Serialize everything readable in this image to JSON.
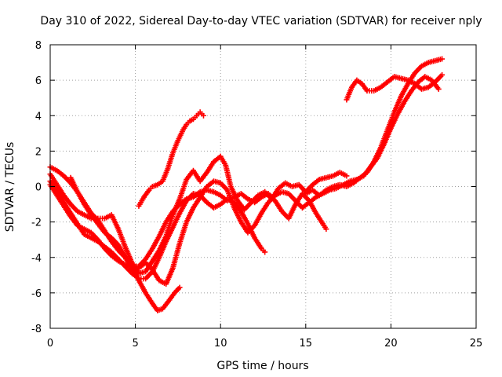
{
  "chart_data": {
    "type": "scatter",
    "title": "Day 310 of 2022, Sidereal Day-to-day VTEC variation (SDTVAR) for receiver nply",
    "xlabel": "GPS time / hours",
    "ylabel": "SDTVAR / TECUs",
    "xlim": [
      0,
      25
    ],
    "ylim": [
      -8,
      8
    ],
    "xticks": [
      0,
      5,
      10,
      15,
      20,
      25
    ],
    "yticks": [
      -8,
      -6,
      -4,
      -2,
      0,
      2,
      4,
      6,
      8
    ],
    "grid": true,
    "marker": "+",
    "color": "#ff0000",
    "series": [
      {
        "points": [
          [
            0.0,
            1.1
          ],
          [
            0.4,
            0.9
          ],
          [
            0.8,
            0.6
          ],
          [
            1.2,
            0.2
          ],
          [
            1.6,
            -0.3
          ],
          [
            2.0,
            -0.9
          ],
          [
            2.4,
            -1.5
          ],
          [
            2.8,
            -1.9
          ],
          [
            3.2,
            -2.5
          ],
          [
            3.6,
            -3.1
          ],
          [
            4.0,
            -3.6
          ],
          [
            4.4,
            -4.0
          ],
          [
            4.8,
            -4.6
          ],
          [
            5.2,
            -5.3
          ],
          [
            5.6,
            -6.0
          ],
          [
            6.0,
            -6.6
          ],
          [
            6.3,
            -7.0
          ],
          [
            6.6,
            -6.9
          ],
          [
            7.0,
            -6.4
          ],
          [
            7.3,
            -6.0
          ],
          [
            7.6,
            -5.7
          ]
        ]
      },
      {
        "points": [
          [
            0.0,
            0.7
          ],
          [
            0.4,
            0.1
          ],
          [
            0.8,
            -0.5
          ],
          [
            1.2,
            -1.0
          ],
          [
            1.6,
            -1.4
          ],
          [
            2.0,
            -1.6
          ],
          [
            2.4,
            -1.8
          ],
          [
            2.8,
            -1.8
          ],
          [
            3.2,
            -1.8
          ],
          [
            3.6,
            -1.6
          ],
          [
            4.0,
            -2.4
          ],
          [
            4.4,
            -3.4
          ],
          [
            4.8,
            -4.3
          ],
          [
            5.2,
            -4.9
          ],
          [
            5.6,
            -4.8
          ],
          [
            6.0,
            -4.2
          ],
          [
            6.4,
            -3.6
          ],
          [
            6.8,
            -2.8
          ],
          [
            7.2,
            -1.6
          ],
          [
            7.6,
            -0.7
          ],
          [
            8.0,
            0.4
          ],
          [
            8.4,
            0.9
          ],
          [
            8.8,
            0.3
          ],
          [
            9.2,
            0.8
          ],
          [
            9.6,
            1.4
          ],
          [
            10.0,
            1.7
          ],
          [
            10.3,
            1.2
          ],
          [
            10.6,
            0.0
          ],
          [
            11.0,
            -0.8
          ],
          [
            11.4,
            -1.3
          ],
          [
            11.8,
            -0.9
          ],
          [
            12.2,
            -0.5
          ],
          [
            12.6,
            -0.3
          ],
          [
            13.0,
            -0.7
          ],
          [
            13.4,
            -0.1
          ],
          [
            13.8,
            0.2
          ],
          [
            14.2,
            0.0
          ],
          [
            14.6,
            0.1
          ],
          [
            15.0,
            -0.3
          ],
          [
            15.4,
            0.1
          ],
          [
            15.8,
            0.4
          ],
          [
            16.2,
            0.5
          ],
          [
            16.6,
            0.6
          ],
          [
            17.0,
            0.8
          ],
          [
            17.4,
            0.6
          ]
        ]
      },
      {
        "points": [
          [
            0.0,
            0.3
          ],
          [
            0.4,
            -0.3
          ],
          [
            0.8,
            -0.9
          ],
          [
            1.2,
            -1.5
          ],
          [
            1.6,
            -2.1
          ],
          [
            2.0,
            -2.7
          ],
          [
            2.4,
            -2.9
          ],
          [
            2.8,
            -3.1
          ],
          [
            3.2,
            -3.4
          ],
          [
            3.6,
            -3.7
          ],
          [
            4.0,
            -4.1
          ],
          [
            4.4,
            -4.5
          ],
          [
            4.8,
            -4.9
          ],
          [
            5.2,
            -5.2
          ],
          [
            5.6,
            -5.2
          ],
          [
            6.0,
            -4.8
          ],
          [
            6.4,
            -4.0
          ],
          [
            6.8,
            -3.1
          ],
          [
            7.2,
            -2.3
          ],
          [
            7.6,
            -1.5
          ],
          [
            8.0,
            -0.8
          ],
          [
            8.4,
            -0.4
          ],
          [
            8.8,
            -0.5
          ],
          [
            9.2,
            -0.9
          ],
          [
            9.6,
            -1.2
          ],
          [
            10.0,
            -1.0
          ],
          [
            10.4,
            -0.7
          ],
          [
            10.8,
            -0.9
          ],
          [
            11.2,
            -1.4
          ],
          [
            11.6,
            -2.1
          ],
          [
            12.0,
            -2.9
          ],
          [
            12.4,
            -3.5
          ],
          [
            12.6,
            -3.7
          ]
        ]
      },
      {
        "points": [
          [
            0.0,
            0.1
          ],
          [
            0.4,
            -0.5
          ],
          [
            0.8,
            -1.1
          ],
          [
            1.2,
            -1.7
          ],
          [
            1.6,
            -2.2
          ],
          [
            2.0,
            -2.4
          ],
          [
            2.4,
            -2.6
          ],
          [
            2.8,
            -3.0
          ],
          [
            3.2,
            -3.5
          ],
          [
            3.6,
            -3.9
          ],
          [
            4.0,
            -4.2
          ],
          [
            4.4,
            -4.4
          ],
          [
            4.8,
            -4.5
          ],
          [
            5.2,
            -4.5
          ],
          [
            5.6,
            -4.1
          ],
          [
            6.0,
            -3.5
          ],
          [
            6.4,
            -2.8
          ],
          [
            6.8,
            -2.0
          ],
          [
            7.2,
            -1.4
          ],
          [
            7.6,
            -1.0
          ],
          [
            8.0,
            -0.7
          ],
          [
            8.4,
            -0.6
          ],
          [
            8.8,
            -0.3
          ],
          [
            9.2,
            -0.2
          ],
          [
            9.6,
            -0.3
          ],
          [
            10.0,
            -0.5
          ],
          [
            10.4,
            -0.8
          ],
          [
            10.8,
            -0.6
          ],
          [
            11.2,
            -0.4
          ],
          [
            11.6,
            -0.7
          ],
          [
            12.0,
            -0.9
          ],
          [
            12.4,
            -0.6
          ],
          [
            12.8,
            -0.4
          ],
          [
            13.2,
            -0.8
          ],
          [
            13.6,
            -1.4
          ],
          [
            14.0,
            -1.8
          ],
          [
            14.4,
            -1.0
          ],
          [
            14.8,
            -0.4
          ],
          [
            15.2,
            -0.8
          ],
          [
            15.6,
            -1.5
          ],
          [
            16.0,
            -2.1
          ],
          [
            16.2,
            -2.4
          ]
        ]
      },
      {
        "points": [
          [
            1.2,
            0.5
          ],
          [
            1.6,
            -0.3
          ],
          [
            2.0,
            -1.0
          ],
          [
            2.4,
            -1.6
          ],
          [
            2.8,
            -2.1
          ],
          [
            3.2,
            -2.6
          ],
          [
            3.6,
            -2.9
          ],
          [
            4.0,
            -3.3
          ],
          [
            4.4,
            -4.0
          ],
          [
            4.8,
            -4.6
          ],
          [
            5.2,
            -4.6
          ],
          [
            5.6,
            -4.3
          ],
          [
            6.0,
            -4.7
          ],
          [
            6.4,
            -5.3
          ],
          [
            6.8,
            -5.5
          ],
          [
            7.2,
            -4.6
          ],
          [
            7.6,
            -3.2
          ],
          [
            8.0,
            -2.0
          ],
          [
            8.4,
            -1.2
          ],
          [
            8.8,
            -0.6
          ],
          [
            9.2,
            0.0
          ],
          [
            9.6,
            0.3
          ],
          [
            10.0,
            0.2
          ],
          [
            10.4,
            -0.2
          ],
          [
            10.8,
            -1.2
          ],
          [
            11.2,
            -2.0
          ],
          [
            11.6,
            -2.6
          ],
          [
            12.0,
            -2.2
          ],
          [
            12.4,
            -1.5
          ],
          [
            12.8,
            -0.9
          ],
          [
            13.2,
            -0.5
          ],
          [
            13.6,
            -0.3
          ],
          [
            14.0,
            -0.4
          ],
          [
            14.4,
            -0.8
          ],
          [
            14.8,
            -1.2
          ],
          [
            15.2,
            -0.9
          ],
          [
            15.6,
            -0.6
          ],
          [
            16.0,
            -0.4
          ],
          [
            16.4,
            -0.2
          ],
          [
            16.8,
            -0.1
          ],
          [
            17.2,
            0.1
          ],
          [
            17.6,
            0.3
          ],
          [
            18.0,
            0.4
          ],
          [
            18.4,
            0.6
          ],
          [
            18.8,
            1.1
          ],
          [
            19.2,
            1.6
          ],
          [
            19.6,
            2.4
          ],
          [
            20.0,
            3.3
          ],
          [
            20.4,
            4.1
          ],
          [
            20.8,
            4.8
          ],
          [
            21.2,
            5.4
          ],
          [
            21.6,
            5.9
          ],
          [
            22.0,
            6.2
          ],
          [
            22.4,
            6.0
          ],
          [
            22.8,
            5.5
          ]
        ]
      },
      {
        "points": [
          [
            5.2,
            -1.1
          ],
          [
            5.5,
            -0.6
          ],
          [
            5.8,
            -0.2
          ],
          [
            6.0,
            0.0
          ],
          [
            6.3,
            0.1
          ],
          [
            6.6,
            0.3
          ],
          [
            6.9,
            1.0
          ],
          [
            7.2,
            1.9
          ],
          [
            7.5,
            2.6
          ],
          [
            7.8,
            3.2
          ],
          [
            8.0,
            3.5
          ],
          [
            8.2,
            3.7
          ],
          [
            8.4,
            3.8
          ],
          [
            8.6,
            4.0
          ],
          [
            8.8,
            4.2
          ],
          [
            9.0,
            4.0
          ]
        ]
      },
      {
        "points": [
          [
            17.4,
            4.9
          ],
          [
            17.7,
            5.6
          ],
          [
            18.0,
            6.0
          ],
          [
            18.3,
            5.8
          ],
          [
            18.6,
            5.4
          ],
          [
            19.0,
            5.4
          ],
          [
            19.4,
            5.6
          ],
          [
            19.8,
            5.9
          ],
          [
            20.2,
            6.2
          ],
          [
            20.6,
            6.1
          ],
          [
            21.0,
            6.0
          ],
          [
            21.4,
            5.8
          ],
          [
            21.8,
            5.5
          ],
          [
            22.2,
            5.6
          ],
          [
            22.6,
            5.9
          ],
          [
            23.0,
            6.3
          ]
        ]
      },
      {
        "points": [
          [
            15.0,
            -0.4
          ],
          [
            15.4,
            -0.2
          ],
          [
            15.8,
            -0.5
          ],
          [
            16.2,
            -0.2
          ],
          [
            16.6,
            0.0
          ],
          [
            17.0,
            0.1
          ],
          [
            17.4,
            0.0
          ],
          [
            17.8,
            0.2
          ],
          [
            18.2,
            0.5
          ],
          [
            18.6,
            0.8
          ],
          [
            19.0,
            1.4
          ],
          [
            19.4,
            2.2
          ],
          [
            19.8,
            3.2
          ],
          [
            20.2,
            4.2
          ],
          [
            20.6,
            5.1
          ],
          [
            21.0,
            5.8
          ],
          [
            21.4,
            6.4
          ],
          [
            21.8,
            6.8
          ],
          [
            22.2,
            7.0
          ],
          [
            22.6,
            7.1
          ],
          [
            23.0,
            7.2
          ]
        ]
      }
    ]
  }
}
